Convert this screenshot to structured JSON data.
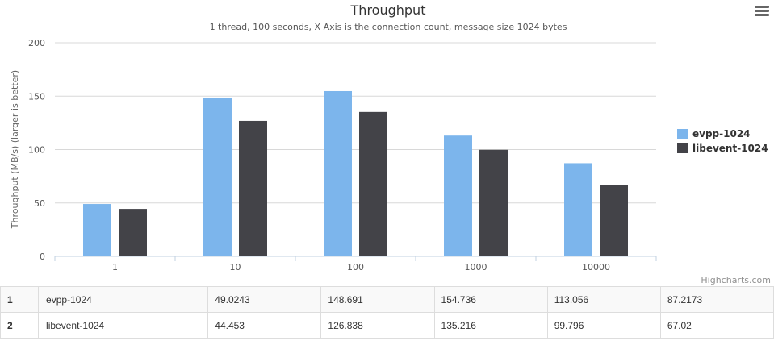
{
  "chart_data": {
    "type": "bar",
    "title": "Throughput",
    "subtitle": "1 thread, 100 seconds, X Axis is the connection count, message size 1024 bytes",
    "xlabel": "",
    "ylabel": "Throughput (MB/s) (larger is better)",
    "categories": [
      "1",
      "10",
      "100",
      "1000",
      "10000"
    ],
    "ylim": [
      0,
      200
    ],
    "yticks": [
      0,
      50,
      100,
      150,
      200
    ],
    "grid": true,
    "legend_position": "right",
    "series": [
      {
        "name": "evpp-1024",
        "color": "#7cb5ec",
        "values": [
          49.0243,
          148.691,
          154.736,
          113.056,
          87.2173
        ]
      },
      {
        "name": "libevent-1024",
        "color": "#434348",
        "values": [
          44.453,
          126.838,
          135.216,
          99.796,
          67.02
        ]
      }
    ],
    "credits": "Highcharts.com"
  },
  "table": {
    "rows": [
      {
        "index": "1",
        "name": "evpp-1024",
        "values": [
          "49.0243",
          "148.691",
          "154.736",
          "113.056",
          "87.2173"
        ]
      },
      {
        "index": "2",
        "name": "libevent-1024",
        "values": [
          "44.453",
          "126.838",
          "135.216",
          "99.796",
          "67.02"
        ]
      }
    ]
  },
  "menu": {
    "icon": "hamburger-menu-icon"
  }
}
